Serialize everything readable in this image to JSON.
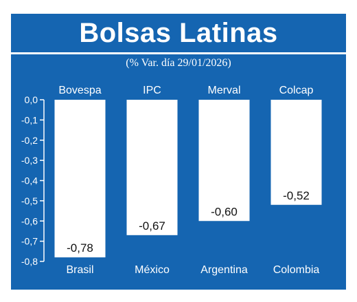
{
  "title": "Bolsas Latinas",
  "subtitle": "(% Var. día 29/01/2026)",
  "colors": {
    "background": "#1565b1",
    "bar": "#ffffff",
    "text": "#ffffff",
    "value_text": "#111111"
  },
  "chart_data": {
    "type": "bar",
    "title": "Bolsas Latinas",
    "subtitle": "(% Var. día 29/01/2026)",
    "categories": [
      "Brasil",
      "México",
      "Argentina",
      "Colombia"
    ],
    "index_names": [
      "Bovespa",
      "IPC",
      "Merval",
      "Colcap"
    ],
    "values": [
      -0.78,
      -0.67,
      -0.6,
      -0.52
    ],
    "value_labels": [
      "-0,78",
      "-0,67",
      "-0,60",
      "-0,52"
    ],
    "ylim": [
      -0.8,
      0.0
    ],
    "yticks": [
      0.0,
      -0.1,
      -0.2,
      -0.3,
      -0.4,
      -0.5,
      -0.6,
      -0.7,
      -0.8
    ],
    "ytick_labels": [
      "0,0",
      "-0,1",
      "-0,2",
      "-0,3",
      "-0,4",
      "-0,5",
      "-0,6",
      "-0,7",
      "-0,8"
    ],
    "grid": false,
    "xlabel": "",
    "ylabel": ""
  }
}
